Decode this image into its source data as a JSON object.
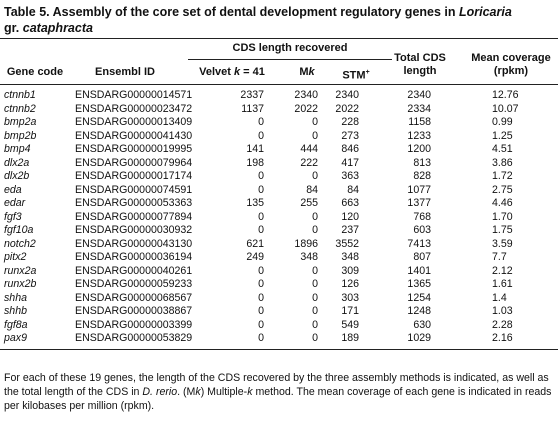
{
  "caption": {
    "label": "Table 5.",
    "text": [
      "Assembly of the core set of dental development regulatory genes in ",
      "Loricaria",
      "gr.",
      "cataphracta"
    ]
  },
  "table": {
    "group_header": "CDS length recovered",
    "columns": [
      [
        "Gene code"
      ],
      [
        "Ensembl ID"
      ],
      [
        "Velvet ",
        "k",
        " = 41"
      ],
      [
        "M",
        "k"
      ],
      [
        "STM",
        "+"
      ],
      [
        "Total CDS",
        "length"
      ],
      [
        "Mean coverage",
        "(rpkm)"
      ]
    ],
    "rows": [
      [
        "ctnnb1",
        "ENSDARG00000014571",
        2337,
        2340,
        2340,
        2340,
        "12.76"
      ],
      [
        "ctnnb2",
        "ENSDARG00000023472",
        1137,
        2022,
        2022,
        2334,
        "10.07"
      ],
      [
        "bmp2a",
        "ENSDARG00000013409",
        0,
        0,
        228,
        1158,
        "0.99"
      ],
      [
        "bmp2b",
        "ENSDARG00000041430",
        0,
        0,
        273,
        1233,
        "1.25"
      ],
      [
        "bmp4",
        "ENSDARG00000019995",
        141,
        444,
        846,
        1200,
        "4.51"
      ],
      [
        "dlx2a",
        "ENSDARG00000079964",
        198,
        222,
        417,
        813,
        "3.86"
      ],
      [
        "dlx2b",
        "ENSDARG00000017174",
        0,
        0,
        363,
        828,
        "1.72"
      ],
      [
        "eda",
        "ENSDARG00000074591",
        0,
        84,
        84,
        1077,
        "2.75"
      ],
      [
        "edar",
        "ENSDARG00000053363",
        135,
        255,
        663,
        1377,
        "4.46"
      ],
      [
        "fgf3",
        "ENSDARG00000077894",
        0,
        0,
        120,
        768,
        "1.70"
      ],
      [
        "fgf10a",
        "ENSDARG00000030932",
        0,
        0,
        237,
        603,
        "1.75"
      ],
      [
        "notch2",
        "ENSDARG00000043130",
        621,
        1896,
        3552,
        7413,
        "3.59"
      ],
      [
        "pitx2",
        "ENSDARG00000036194",
        249,
        348,
        348,
        807,
        "7.7"
      ],
      [
        "runx2a",
        "ENSDARG00000040261",
        0,
        0,
        309,
        1401,
        "2.12"
      ],
      [
        "runx2b",
        "ENSDARG00000059233",
        0,
        0,
        126,
        1365,
        "1.61"
      ],
      [
        "shha",
        "ENSDARG00000068567",
        0,
        0,
        303,
        1254,
        "1.4"
      ],
      [
        "shhb",
        "ENSDARG00000038867",
        0,
        0,
        171,
        1248,
        "1.03"
      ],
      [
        "fgf8a",
        "ENSDARG00000003399",
        0,
        0,
        549,
        630,
        "2.28"
      ],
      [
        "pax9",
        "ENSDARG00000053829",
        0,
        0,
        189,
        1029,
        "2.16"
      ]
    ]
  },
  "footnote": [
    "For each of these 19 genes, the length of the CDS recovered by the three assembly methods is indicated, as well as the total length of the CDS in ",
    "D. rerio",
    ". (M",
    "k",
    ") Multiple-",
    "k",
    " method. The mean coverage of each gene is indicated in reads per kilobases per million (rpkm)."
  ]
}
